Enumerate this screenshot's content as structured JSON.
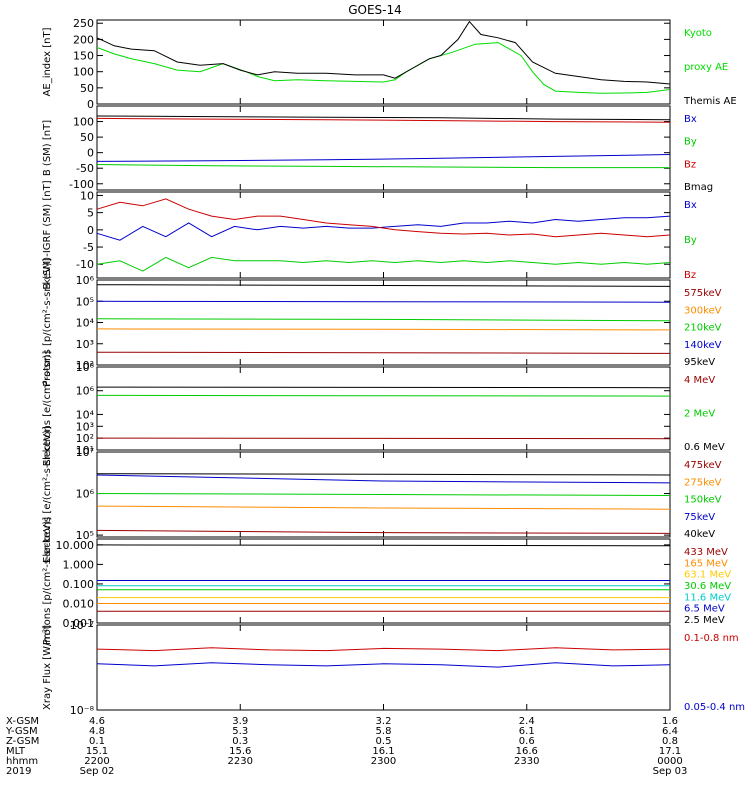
{
  "title": "GOES-14",
  "chart_data": [
    {
      "type": "line",
      "ylabel": "AE_index [nT]",
      "ylim": [
        0,
        260
      ],
      "yscale": "linear",
      "yticks": [
        0,
        50,
        100,
        150,
        200,
        250
      ],
      "ytick_labels": [
        "0",
        "50",
        "100",
        "150",
        "200",
        "250"
      ],
      "legend": [
        "Kyoto",
        "proxy AE",
        "Themis AE"
      ],
      "series": [
        {
          "name": "Kyoto proxy AE",
          "color": "#00dd00",
          "x": [
            0,
            0.03,
            0.06,
            0.1,
            0.14,
            0.18,
            0.22,
            0.26,
            0.28,
            0.31,
            0.35,
            0.4,
            0.45,
            0.5,
            0.52,
            0.54,
            0.58,
            0.62,
            0.66,
            0.7,
            0.74,
            0.76,
            0.78,
            0.8,
            0.84,
            0.88,
            0.92,
            0.96,
            1
          ],
          "y": [
            175,
            155,
            140,
            125,
            105,
            100,
            125,
            100,
            85,
            72,
            75,
            72,
            70,
            68,
            75,
            100,
            140,
            160,
            185,
            190,
            150,
            100,
            60,
            40,
            36,
            33,
            34,
            36,
            45
          ]
        },
        {
          "name": "Themis AE",
          "color": "#000000",
          "x": [
            0,
            0.03,
            0.06,
            0.1,
            0.14,
            0.18,
            0.22,
            0.25,
            0.28,
            0.31,
            0.35,
            0.4,
            0.45,
            0.5,
            0.52,
            0.55,
            0.58,
            0.6,
            0.63,
            0.65,
            0.67,
            0.7,
            0.73,
            0.76,
            0.8,
            0.84,
            0.88,
            0.92,
            0.96,
            1
          ],
          "y": [
            205,
            180,
            170,
            165,
            130,
            120,
            125,
            105,
            90,
            100,
            95,
            95,
            90,
            90,
            80,
            110,
            140,
            150,
            200,
            255,
            215,
            205,
            190,
            130,
            95,
            85,
            75,
            70,
            68,
            62
          ]
        }
      ],
      "side_labels": [
        {
          "text": "Kyoto",
          "color": "#00dd00"
        },
        {
          "text": "proxy AE",
          "color": "#00dd00"
        },
        {
          "text": "Themis AE",
          "color": "#000000"
        }
      ]
    },
    {
      "type": "line",
      "ylabel": "B (SM) [nT]",
      "ylim": [
        -120,
        150
      ],
      "yscale": "linear",
      "yticks": [
        -100,
        -50,
        0,
        50,
        100
      ],
      "ytick_labels": [
        "-100",
        "-50",
        "0",
        "50",
        "100"
      ],
      "series": [
        {
          "name": "Bx",
          "color": "#0000cc",
          "x": [
            0,
            0.2,
            0.4,
            0.6,
            0.8,
            1
          ],
          "y": [
            -28,
            -26,
            -23,
            -18,
            -12,
            -6
          ]
        },
        {
          "name": "By",
          "color": "#00cc00",
          "x": [
            0,
            0.2,
            0.4,
            0.6,
            0.8,
            1
          ],
          "y": [
            -38,
            -42,
            -44,
            -46,
            -48,
            -48
          ]
        },
        {
          "name": "Bz",
          "color": "#cc0000",
          "x": [
            0,
            0.2,
            0.4,
            0.6,
            0.8,
            1
          ],
          "y": [
            110,
            108,
            106,
            103,
            100,
            98
          ]
        },
        {
          "name": "Bmag",
          "color": "#000000",
          "x": [
            0,
            0.2,
            0.4,
            0.6,
            0.8,
            1
          ],
          "y": [
            118,
            116,
            114,
            112,
            108,
            106
          ]
        }
      ],
      "side_labels": [
        {
          "text": "Bx",
          "color": "#0000cc"
        },
        {
          "text": "By",
          "color": "#00cc00"
        },
        {
          "text": "Bz",
          "color": "#cc0000"
        },
        {
          "text": "Bmag",
          "color": "#000000"
        }
      ]
    },
    {
      "type": "line",
      "ylabel": "B (SM)-IGRF (SM) [nT]",
      "ylim": [
        -14,
        11
      ],
      "yscale": "linear",
      "yticks": [
        -10,
        -5,
        0,
        5,
        10
      ],
      "ytick_labels": [
        "-10",
        "-5",
        "0",
        "5",
        "10"
      ],
      "series": [
        {
          "name": "Bx",
          "color": "#0000cc",
          "x": [
            0,
            0.04,
            0.08,
            0.12,
            0.16,
            0.2,
            0.24,
            0.28,
            0.32,
            0.36,
            0.4,
            0.44,
            0.48,
            0.52,
            0.56,
            0.6,
            0.64,
            0.68,
            0.72,
            0.76,
            0.8,
            0.84,
            0.88,
            0.92,
            0.96,
            1
          ],
          "y": [
            -1,
            -3,
            1,
            -2,
            2,
            -2,
            1,
            0,
            1,
            0.5,
            1,
            0.5,
            0.5,
            1,
            1.5,
            1,
            2,
            2,
            2.5,
            2,
            3,
            2.5,
            3,
            3.5,
            3.5,
            4
          ]
        },
        {
          "name": "By",
          "color": "#00cc00",
          "x": [
            0,
            0.04,
            0.08,
            0.12,
            0.16,
            0.2,
            0.24,
            0.28,
            0.32,
            0.36,
            0.4,
            0.44,
            0.48,
            0.52,
            0.56,
            0.6,
            0.64,
            0.68,
            0.72,
            0.76,
            0.8,
            0.84,
            0.88,
            0.92,
            0.96,
            1
          ],
          "y": [
            -10,
            -9,
            -12,
            -8,
            -11,
            -8,
            -9,
            -9,
            -9,
            -9.5,
            -9,
            -9.5,
            -9,
            -9.5,
            -9,
            -9.5,
            -9,
            -9.5,
            -9,
            -9.5,
            -10,
            -9.5,
            -10,
            -9.5,
            -10,
            -9.5
          ]
        },
        {
          "name": "Bz",
          "color": "#cc0000",
          "x": [
            0,
            0.04,
            0.08,
            0.12,
            0.16,
            0.2,
            0.24,
            0.28,
            0.32,
            0.36,
            0.4,
            0.44,
            0.48,
            0.52,
            0.56,
            0.6,
            0.64,
            0.68,
            0.72,
            0.76,
            0.8,
            0.84,
            0.88,
            0.92,
            0.96,
            1
          ],
          "y": [
            6,
            8,
            7,
            9,
            6,
            4,
            3,
            4,
            4,
            3,
            2,
            1.5,
            1,
            0,
            -0.5,
            -1,
            -1.2,
            -1,
            -1.5,
            -1.2,
            -2,
            -1.5,
            -1,
            -1.5,
            -2,
            -1.5
          ]
        }
      ],
      "side_labels": [
        {
          "text": "Bx",
          "color": "#0000cc"
        },
        {
          "text": "By",
          "color": "#00cc00"
        },
        {
          "text": "Bz",
          "color": "#cc0000"
        }
      ]
    },
    {
      "type": "line",
      "ylabel": "Protons [p/(cm²-s-sr-keV)]",
      "yscale": "log",
      "ylim": [
        100,
        1000000
      ],
      "yticks": [
        100,
        1000,
        10000,
        100000,
        1000000
      ],
      "ytick_labels": [
        "10²",
        "10³",
        "10⁴",
        "10⁵",
        "10⁶"
      ],
      "series": [
        {
          "name": "575keV",
          "color": "#000000",
          "x": [
            0,
            0.5,
            1
          ],
          "y": [
            600000,
            550000,
            500000
          ]
        },
        {
          "name": "300keV",
          "color": "#ff8c00",
          "x": [
            0,
            0.5,
            1
          ],
          "y": [
            5000,
            4800,
            4500
          ]
        },
        {
          "name": "210keV",
          "color": "#00cc00",
          "x": [
            0,
            0.5,
            1
          ],
          "y": [
            15000,
            14000,
            12000
          ]
        },
        {
          "name": "140keV",
          "color": "#0000cc",
          "x": [
            0,
            0.5,
            1
          ],
          "y": [
            100000,
            95000,
            90000
          ]
        },
        {
          "name": "95keV",
          "color": "#990000",
          "x": [
            0,
            0.5,
            1
          ],
          "y": [
            400,
            380,
            350
          ]
        }
      ],
      "side_labels": [
        {
          "text": "575keV",
          "color": "#990000"
        },
        {
          "text": "300keV",
          "color": "#ff8c00"
        },
        {
          "text": "210keV",
          "color": "#00cc00"
        },
        {
          "text": "140keV",
          "color": "#0000cc"
        },
        {
          "text": "95keV",
          "color": "#000000"
        }
      ]
    },
    {
      "type": "line",
      "ylabel": "Electrons [e/(cm²-s-sr)]",
      "yscale": "log",
      "ylim": [
        10,
        100000000
      ],
      "yticks": [
        10,
        100,
        1000,
        10000,
        1000000,
        100000000
      ],
      "ytick_labels": [
        "10¹",
        "10²",
        "10³",
        "10⁴",
        "10⁶",
        "10⁸"
      ],
      "series": [
        {
          "name": "4 MeV",
          "color": "#990000",
          "x": [
            0,
            0.5,
            1
          ],
          "y": [
            100,
            95,
            90
          ]
        },
        {
          "name": "2 MeV",
          "color": "#00cc00",
          "x": [
            0,
            0.5,
            1
          ],
          "y": [
            400000,
            380000,
            350000
          ]
        },
        {
          "name": "0.6 MeV",
          "color": "#000000",
          "x": [
            0,
            0.5,
            1
          ],
          "y": [
            2000000,
            1900000,
            1800000
          ]
        }
      ],
      "side_labels": [
        {
          "text": "4 MeV",
          "color": "#990000"
        },
        {
          "text": "2 MeV",
          "color": "#00cc00"
        },
        {
          "text": "0.6 MeV",
          "color": "#000000"
        }
      ]
    },
    {
      "type": "line",
      "ylabel": "Electrons [e/(cm²-s-sr-keV)]",
      "yscale": "log",
      "ylim": [
        90000,
        10000000
      ],
      "yticks": [
        100000,
        1000000,
        10000000
      ],
      "ytick_labels": [
        "10⁵",
        "10⁶",
        "10⁷"
      ],
      "series": [
        {
          "name": "475keV",
          "color": "#000000",
          "x": [
            0,
            0.5,
            1
          ],
          "y": [
            3000000,
            2900000,
            2800000
          ]
        },
        {
          "name": "275keV",
          "color": "#0000cc",
          "x": [
            0,
            0.5,
            1
          ],
          "y": [
            2800000,
            2000000,
            1800000
          ]
        },
        {
          "name": "150keV",
          "color": "#00cc00",
          "x": [
            0,
            0.5,
            1
          ],
          "y": [
            1000000,
            950000,
            900000
          ]
        },
        {
          "name": "75keV",
          "color": "#ff8c00",
          "x": [
            0,
            0.5,
            1
          ],
          "y": [
            500000,
            450000,
            420000
          ]
        },
        {
          "name": "40keV",
          "color": "#990000",
          "x": [
            0,
            0.5,
            1
          ],
          "y": [
            130000,
            115000,
            110000
          ]
        }
      ],
      "side_labels": [
        {
          "text": "475keV",
          "color": "#990000"
        },
        {
          "text": "275keV",
          "color": "#ff8c00"
        },
        {
          "text": "150keV",
          "color": "#00cc00"
        },
        {
          "text": "75keV",
          "color": "#0000cc"
        },
        {
          "text": "40keV",
          "color": "#000000"
        }
      ]
    },
    {
      "type": "line",
      "ylabel": "Protons [p/(cm²-s-sr-keV)]",
      "yscale": "log",
      "ylim": [
        0.001,
        20
      ],
      "yticks": [
        0.001,
        0.01,
        0.1,
        1,
        10
      ],
      "ytick_labels": [
        "0.001",
        "0.010",
        "0.100",
        "1.000",
        "10.000"
      ],
      "series": [
        {
          "name": "433 MeV",
          "color": "#000000",
          "x": [
            0,
            0.5,
            1
          ],
          "y": [
            10,
            9.5,
            9
          ]
        },
        {
          "name": "165 MeV",
          "color": "#990000",
          "x": [
            0,
            0.5,
            1
          ],
          "y": [
            0.004,
            0.004,
            0.004
          ]
        },
        {
          "name": "63.1 MeV",
          "color": "#ff8c00",
          "x": [
            0,
            0.5,
            1
          ],
          "y": [
            0.01,
            0.01,
            0.01
          ]
        },
        {
          "name": "30.6 MeV",
          "color": "#ffcc00",
          "x": [
            0,
            0.5,
            1
          ],
          "y": [
            0.02,
            0.02,
            0.02
          ]
        },
        {
          "name": "11.6 MeV",
          "color": "#00cc00",
          "x": [
            0,
            0.5,
            1
          ],
          "y": [
            0.05,
            0.05,
            0.05
          ]
        },
        {
          "name": "6.5 MeV",
          "color": "#00cccc",
          "x": [
            0,
            0.5,
            1
          ],
          "y": [
            0.08,
            0.08,
            0.08
          ]
        },
        {
          "name": "2.5 MeV",
          "color": "#0000cc",
          "x": [
            0,
            0.5,
            1
          ],
          "y": [
            0.15,
            0.15,
            0.15
          ]
        }
      ],
      "side_labels": [
        {
          "text": "433 MeV",
          "color": "#990000"
        },
        {
          "text": "165 MeV",
          "color": "#ff8c00"
        },
        {
          "text": "63.1 MeV",
          "color": "#ffcc00"
        },
        {
          "text": "30.6 MeV",
          "color": "#00cc00"
        },
        {
          "text": "11.6 MeV",
          "color": "#00cccc"
        },
        {
          "text": "6.5 MeV",
          "color": "#0000cc"
        },
        {
          "text": "2.5 MeV",
          "color": "#000000"
        }
      ]
    },
    {
      "type": "line",
      "ylabel": "Xray Flux [W/m²]",
      "yscale": "log",
      "ylim": [
        1e-08,
        1e-07
      ],
      "yticks": [
        1e-08,
        1e-07
      ],
      "ytick_labels": [
        "10⁻⁸",
        "10⁻⁷"
      ],
      "series": [
        {
          "name": "0.1-0.8 nm",
          "color": "#cc0000",
          "x": [
            0,
            0.1,
            0.2,
            0.3,
            0.4,
            0.5,
            0.6,
            0.7,
            0.8,
            0.9,
            1
          ],
          "y": [
            5.2e-08,
            5e-08,
            5.4e-08,
            5.1e-08,
            5e-08,
            5.3e-08,
            5.2e-08,
            5e-08,
            5.4e-08,
            5.1e-08,
            5.2e-08
          ]
        },
        {
          "name": "0.05-0.4 nm",
          "color": "#0000cc",
          "x": [
            0,
            0.1,
            0.2,
            0.3,
            0.4,
            0.5,
            0.6,
            0.7,
            0.8,
            0.9,
            1
          ],
          "y": [
            3.5e-08,
            3.3e-08,
            3.6e-08,
            3.4e-08,
            3.3e-08,
            3.5e-08,
            3.4e-08,
            3.2e-08,
            3.6e-08,
            3.3e-08,
            3.4e-08
          ]
        }
      ],
      "side_labels": [
        {
          "text": "0.1-0.8 nm",
          "color": "#cc0000"
        },
        {
          "text": "0.05-0.4 nm",
          "color": "#0000cc"
        }
      ]
    }
  ],
  "footer": {
    "row_labels": [
      "X-GSM",
      "Y-GSM",
      "Z-GSM",
      "MLT",
      "hhmm",
      "2019"
    ],
    "columns": [
      {
        "values": [
          "4.6",
          "4.8",
          "0.1",
          "15.1",
          "2200",
          "Sep 02"
        ]
      },
      {
        "values": [
          "3.9",
          "5.3",
          "0.3",
          "15.6",
          "2230",
          ""
        ]
      },
      {
        "values": [
          "3.2",
          "5.8",
          "0.5",
          "16.1",
          "2300",
          ""
        ]
      },
      {
        "values": [
          "2.4",
          "6.1",
          "0.6",
          "16.6",
          "2330",
          ""
        ]
      },
      {
        "values": [
          "1.6",
          "6.4",
          "0.8",
          "17.1",
          "0000",
          "Sep 03"
        ]
      }
    ]
  }
}
